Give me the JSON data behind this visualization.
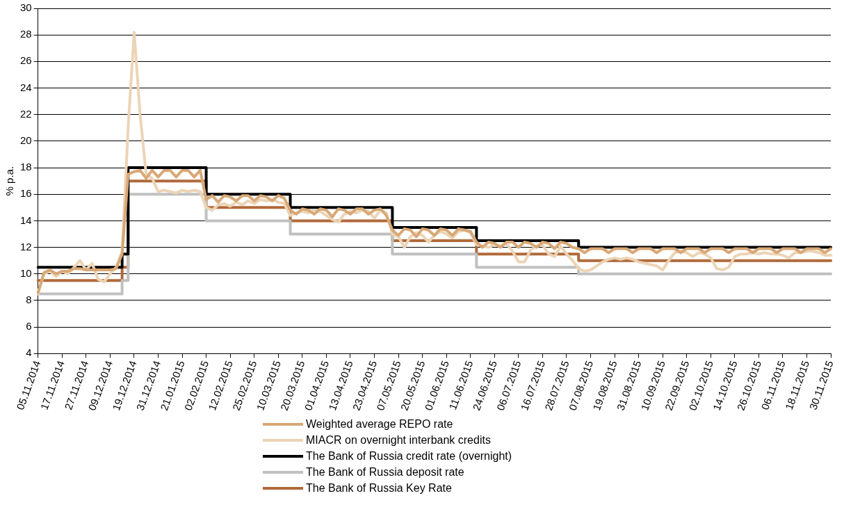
{
  "chart_data": {
    "type": "line",
    "ylabel": "% p.a.",
    "ylim": [
      4,
      30
    ],
    "yticks": [
      4,
      6,
      8,
      10,
      12,
      14,
      16,
      18,
      20,
      22,
      24,
      26,
      28,
      30
    ],
    "grid": "y",
    "legend": "bottom",
    "marker": "none",
    "line_style": "solid",
    "categories": [
      "05.11.2014",
      null,
      null,
      null,
      "17.11.2014",
      null,
      null,
      null,
      "27.11.2014",
      null,
      null,
      null,
      "09.12.2014",
      null,
      null,
      null,
      "19.12.2014",
      null,
      null,
      null,
      "31.12.2014",
      null,
      null,
      null,
      "21.01.2015",
      null,
      null,
      null,
      "02.02.2015",
      null,
      null,
      null,
      "12.02.2015",
      null,
      null,
      null,
      "25.02.2015",
      null,
      null,
      null,
      "10.03.2015",
      null,
      null,
      null,
      "20.03.2015",
      null,
      null,
      null,
      "01.04.2015",
      null,
      null,
      null,
      "13.04.2015",
      null,
      null,
      null,
      "23.04.2015",
      null,
      null,
      null,
      "07.05.2015",
      null,
      null,
      null,
      "20.05.2015",
      null,
      null,
      null,
      "01.06.2015",
      null,
      null,
      null,
      "11.06.2015",
      null,
      null,
      null,
      "24.06.2015",
      null,
      null,
      null,
      "06.07.2015",
      null,
      null,
      null,
      "16.07.2015",
      null,
      null,
      null,
      "28.07.2015",
      null,
      null,
      null,
      "07.08.2015",
      null,
      null,
      null,
      "19.08.2015",
      null,
      null,
      null,
      "31.08.2015",
      null,
      null,
      null,
      "10.09.2015",
      null,
      null,
      null,
      "22.09.2015",
      null,
      null,
      null,
      "02.10.2015",
      null,
      null,
      null,
      "14.10.2015",
      null,
      null,
      null,
      "26.10.2015",
      null,
      null,
      null,
      "06.11.2015",
      null,
      null,
      null,
      "18.11.2015",
      null,
      null,
      null,
      "30.11.2015"
    ],
    "series": [
      {
        "name": "Weighted average REPO rate",
        "type": "line",
        "color": "#d8a876",
        "values": [
          8.6,
          10.1,
          10.3,
          10.0,
          10.2,
          10.2,
          10.4,
          10.4,
          10.3,
          10.3,
          10.3,
          10.3,
          10.3,
          10.4,
          11.5,
          17.5,
          17.7,
          17.8,
          17.2,
          17.8,
          17.3,
          17.8,
          17.8,
          17.3,
          17.8,
          17.8,
          17.3,
          17.8,
          15.6,
          15.9,
          15.4,
          15.9,
          15.8,
          15.5,
          15.9,
          15.9,
          15.5,
          15.9,
          15.8,
          15.5,
          15.9,
          15.7,
          14.8,
          14.5,
          14.9,
          14.8,
          14.5,
          14.9,
          14.8,
          14.3,
          14.9,
          14.8,
          14.5,
          14.9,
          14.9,
          14.5,
          14.8,
          14.9,
          14.4,
          13.3,
          12.9,
          13.4,
          13.3,
          12.8,
          13.4,
          13.3,
          12.9,
          13.4,
          13.3,
          12.9,
          13.4,
          13.3,
          13.2,
          12.4,
          12.0,
          12.4,
          12.3,
          12.0,
          12.4,
          12.4,
          12.0,
          12.4,
          12.3,
          12.0,
          12.4,
          12.3,
          11.9,
          12.4,
          12.3,
          12.0,
          11.9,
          11.6,
          11.9,
          11.9,
          11.9,
          11.6,
          11.9,
          11.9,
          11.9,
          11.6,
          11.9,
          11.9,
          11.9,
          11.6,
          11.9,
          11.9,
          11.9,
          11.6,
          11.9,
          11.9,
          11.9,
          11.6,
          11.9,
          11.9,
          11.9,
          11.6,
          11.9,
          11.9,
          11.9,
          11.6,
          11.9,
          11.9,
          11.9,
          11.6,
          11.9,
          11.9,
          11.9,
          11.6,
          11.9,
          11.9,
          11.9,
          11.6,
          11.9
        ]
      },
      {
        "name": "MIACR on overnight interbank credits",
        "type": "line",
        "color": "#ecd4b6",
        "values": [
          8.5,
          10.0,
          10.2,
          9.8,
          10.2,
          10.0,
          10.5,
          11.0,
          10.3,
          10.8,
          9.6,
          9.4,
          10.0,
          10.5,
          11.7,
          21,
          28.2,
          22,
          17.5,
          17.2,
          16.2,
          16.3,
          16.2,
          16.1,
          16.3,
          16.2,
          16.3,
          16.2,
          15,
          14.8,
          15.2,
          15.3,
          15.1,
          15.4,
          15.2,
          15.5,
          15.3,
          15.6,
          15.5,
          15.6,
          15.4,
          15.3,
          14.4,
          14.6,
          14.7,
          14.6,
          14.8,
          14.7,
          14.4,
          14.1,
          13.9,
          14.5,
          14.7,
          14.6,
          14.8,
          14.7,
          14.2,
          14.8,
          14.6,
          13,
          12.8,
          12,
          12.8,
          13.1,
          12.9,
          12.4,
          12.9,
          13.2,
          13,
          12.7,
          13.2,
          13.3,
          13.1,
          12.2,
          12.1,
          12,
          12.2,
          12.1,
          12.3,
          11.7,
          10.9,
          10.9,
          11.8,
          12.1,
          12.2,
          11.5,
          11.3,
          12.1,
          11.5,
          11.0,
          10.4,
          10.2,
          10.3,
          10.6,
          10.9,
          11.1,
          11.2,
          11.1,
          11.2,
          11.1,
          10.9,
          10.8,
          10.7,
          10.6,
          10.3,
          11.0,
          11.6,
          11.7,
          11.6,
          11.3,
          11.6,
          11.5,
          11.2,
          10.4,
          10.3,
          10.5,
          11.3,
          11.5,
          11.5,
          11.6,
          11.5,
          11.6,
          11.5,
          11.5,
          11.4,
          11.2,
          11.6,
          11.6,
          11.7,
          11.7,
          11.6,
          11.4,
          11.4
        ]
      },
      {
        "name": "The Bank of Russia credit rate (overnight)",
        "type": "step",
        "color": "#000000",
        "values": [
          10.5,
          10.5,
          10.5,
          10.5,
          10.5,
          10.5,
          10.5,
          10.5,
          10.5,
          10.5,
          10.5,
          10.5,
          10.5,
          10.5,
          11.5,
          18,
          18,
          18,
          18,
          18,
          18,
          18,
          18,
          18,
          18,
          18,
          18,
          18,
          16,
          16,
          16,
          16,
          16,
          16,
          16,
          16,
          16,
          16,
          16,
          16,
          16,
          16,
          15,
          15,
          15,
          15,
          15,
          15,
          15,
          15,
          15,
          15,
          15,
          15,
          15,
          15,
          15,
          15,
          15,
          13.5,
          13.5,
          13.5,
          13.5,
          13.5,
          13.5,
          13.5,
          13.5,
          13.5,
          13.5,
          13.5,
          13.5,
          13.5,
          13.5,
          12.5,
          12.5,
          12.5,
          12.5,
          12.5,
          12.5,
          12.5,
          12.5,
          12.5,
          12.5,
          12.5,
          12.5,
          12.5,
          12.5,
          12.5,
          12.5,
          12.5,
          12,
          12,
          12,
          12,
          12,
          12,
          12,
          12,
          12,
          12,
          12,
          12,
          12,
          12,
          12,
          12,
          12,
          12,
          12,
          12,
          12,
          12,
          12,
          12,
          12,
          12,
          12,
          12,
          12,
          12,
          12,
          12,
          12,
          12,
          12,
          12,
          12,
          12,
          12,
          12,
          12,
          12,
          12
        ]
      },
      {
        "name": "The Bank of Russia deposit rate",
        "type": "step",
        "color": "#c0c0c0",
        "values": [
          8.5,
          8.5,
          8.5,
          8.5,
          8.5,
          8.5,
          8.5,
          8.5,
          8.5,
          8.5,
          8.5,
          8.5,
          8.5,
          8.5,
          9.5,
          16,
          16,
          16,
          16,
          16,
          16,
          16,
          16,
          16,
          16,
          16,
          16,
          16,
          14,
          14,
          14,
          14,
          14,
          14,
          14,
          14,
          14,
          14,
          14,
          14,
          14,
          14,
          13,
          13,
          13,
          13,
          13,
          13,
          13,
          13,
          13,
          13,
          13,
          13,
          13,
          13,
          13,
          13,
          13,
          11.5,
          11.5,
          11.5,
          11.5,
          11.5,
          11.5,
          11.5,
          11.5,
          11.5,
          11.5,
          11.5,
          11.5,
          11.5,
          11.5,
          10.5,
          10.5,
          10.5,
          10.5,
          10.5,
          10.5,
          10.5,
          10.5,
          10.5,
          10.5,
          10.5,
          10.5,
          10.5,
          10.5,
          10.5,
          10.5,
          10.5,
          10,
          10,
          10,
          10,
          10,
          10,
          10,
          10,
          10,
          10,
          10,
          10,
          10,
          10,
          10,
          10,
          10,
          10,
          10,
          10,
          10,
          10,
          10,
          10,
          10,
          10,
          10,
          10,
          10,
          10,
          10,
          10,
          10,
          10,
          10,
          10,
          10,
          10,
          10,
          10,
          10,
          10,
          10
        ]
      },
      {
        "name": "The Bank of Russia Key Rate",
        "type": "step",
        "color": "#b06a3b",
        "values": [
          9.5,
          9.5,
          9.5,
          9.5,
          9.5,
          9.5,
          9.5,
          9.5,
          9.5,
          9.5,
          9.5,
          9.5,
          9.5,
          9.5,
          10.5,
          17,
          17,
          17,
          17,
          17,
          17,
          17,
          17,
          17,
          17,
          17,
          17,
          17,
          15,
          15,
          15,
          15,
          15,
          15,
          15,
          15,
          15,
          15,
          15,
          15,
          15,
          15,
          14,
          14,
          14,
          14,
          14,
          14,
          14,
          14,
          14,
          14,
          14,
          14,
          14,
          14,
          14,
          14,
          14,
          12.5,
          12.5,
          12.5,
          12.5,
          12.5,
          12.5,
          12.5,
          12.5,
          12.5,
          12.5,
          12.5,
          12.5,
          12.5,
          12.5,
          11.5,
          11.5,
          11.5,
          11.5,
          11.5,
          11.5,
          11.5,
          11.5,
          11.5,
          11.5,
          11.5,
          11.5,
          11.5,
          11.5,
          11.5,
          11.5,
          11.5,
          11,
          11,
          11,
          11,
          11,
          11,
          11,
          11,
          11,
          11,
          11,
          11,
          11,
          11,
          11,
          11,
          11,
          11,
          11,
          11,
          11,
          11,
          11,
          11,
          11,
          11,
          11,
          11,
          11,
          11,
          11,
          11,
          11,
          11,
          11,
          11,
          11,
          11,
          11,
          11,
          11,
          11,
          11
        ]
      }
    ]
  }
}
